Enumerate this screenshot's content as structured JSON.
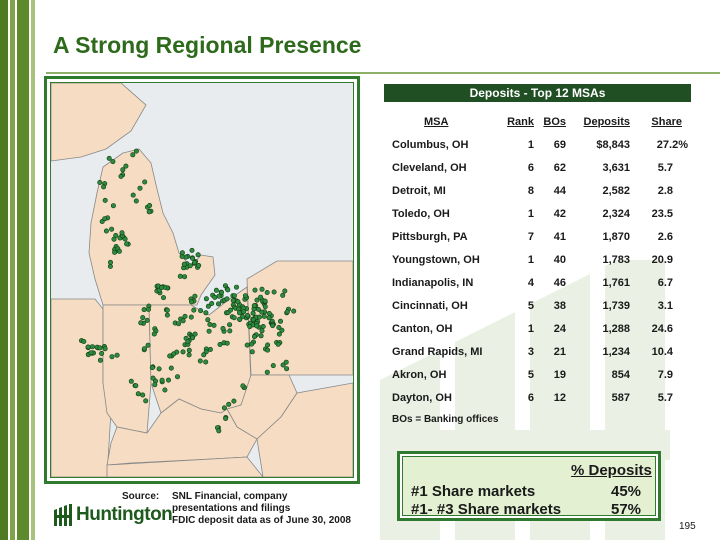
{
  "slide": {
    "title": "A Strong Regional Presence",
    "page_number": "195"
  },
  "table": {
    "title": "Deposits - Top 12 MSAs",
    "headers": {
      "msa": "MSA",
      "rank": "Rank",
      "bos": "BOs",
      "deposits": "Deposits",
      "share": "Share"
    },
    "rows": [
      {
        "msa": "Columbus, OH",
        "rank": "1",
        "bos": "69",
        "deposits": "$8,843",
        "share": "27.2%"
      },
      {
        "msa": "Cleveland, OH",
        "rank": "6",
        "bos": "62",
        "deposits": "3,631",
        "share": "5.7"
      },
      {
        "msa": "Detroit, MI",
        "rank": "8",
        "bos": "44",
        "deposits": "2,582",
        "share": "2.8"
      },
      {
        "msa": "Toledo, OH",
        "rank": "1",
        "bos": "42",
        "deposits": "2,324",
        "share": "23.5"
      },
      {
        "msa": "Pittsburgh, PA",
        "rank": "7",
        "bos": "41",
        "deposits": "1,870",
        "share": "2.6"
      },
      {
        "msa": "Youngstown, OH",
        "rank": "1",
        "bos": "40",
        "deposits": "1,783",
        "share": "20.9"
      },
      {
        "msa": "Indianapolis, IN",
        "rank": "4",
        "bos": "46",
        "deposits": "1,761",
        "share": "6.7"
      },
      {
        "msa": "Cincinnati, OH",
        "rank": "5",
        "bos": "38",
        "deposits": "1,739",
        "share": "3.1"
      },
      {
        "msa": "Canton, OH",
        "rank": "1",
        "bos": "24",
        "deposits": "1,288",
        "share": "24.6"
      },
      {
        "msa": "Grand Rapids, MI",
        "rank": "3",
        "bos": "21",
        "deposits": "1,234",
        "share": "10.4"
      },
      {
        "msa": "Akron, OH",
        "rank": "5",
        "bos": "19",
        "deposits": "854",
        "share": "7.9"
      },
      {
        "msa": "Dayton, OH",
        "rank": "6",
        "bos": "12",
        "deposits": "587",
        "share": "5.7"
      }
    ],
    "footnote": "BOs  = Banking offices"
  },
  "share_box": {
    "header": "% Deposits",
    "line1_label": "#1 Share markets",
    "line1_value": "45%",
    "line2_label": "#1- #3 Share markets",
    "line2_value": "57%"
  },
  "source": {
    "label": "Source:",
    "line1": "SNL Financial, company",
    "line2": "presentations and filings",
    "line3": "FDIC deposit data as of June 30, 2008"
  },
  "logo": {
    "text": "Huntington",
    "icon": "huntington-logo-icon"
  },
  "colors": {
    "brand_green": "#2e6a1b",
    "table_header": "#1f4f22",
    "map_land": "#f5dcc3",
    "map_dot": "#2e8b3e",
    "box_fill": "#e3f1d2"
  }
}
